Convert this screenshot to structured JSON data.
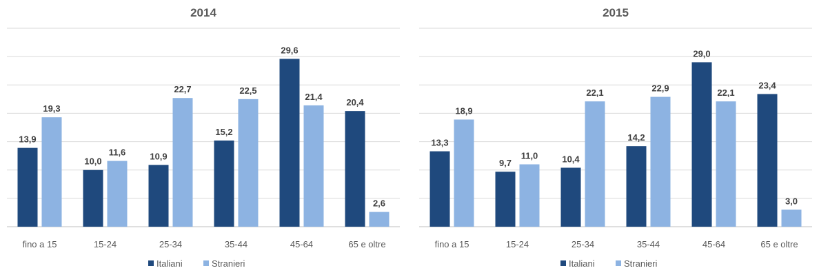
{
  "chart_data": [
    {
      "type": "bar",
      "title": "2014",
      "categories": [
        "fino a 15",
        "15-24",
        "25-34",
        "35-44",
        "45-64",
        "65 e oltre"
      ],
      "series": [
        {
          "name": "Italiani",
          "values": [
            13.9,
            10.0,
            10.9,
            15.2,
            29.6,
            20.4
          ]
        },
        {
          "name": "Stranieri",
          "values": [
            19.3,
            11.6,
            22.7,
            22.5,
            21.4,
            2.6
          ]
        }
      ],
      "data_labels": [
        [
          "13,9",
          "10,0",
          "10,9",
          "15,2",
          "29,6",
          "20,4"
        ],
        [
          "19,3",
          "11,6",
          "22,7",
          "22,5",
          "21,4",
          "2,6"
        ]
      ],
      "ylim": [
        0,
        35
      ],
      "grid": true,
      "legend": "bottom",
      "colors": [
        "#1f497d",
        "#8db3e2"
      ]
    },
    {
      "type": "bar",
      "title": "2015",
      "categories": [
        "fino a 15",
        "15-24",
        "25-34",
        "35-44",
        "45-64",
        "65 e oltre"
      ],
      "series": [
        {
          "name": "Italiani",
          "values": [
            13.3,
            9.7,
            10.4,
            14.2,
            29.0,
            23.4
          ]
        },
        {
          "name": "Stranieri",
          "values": [
            18.9,
            11.0,
            22.1,
            22.9,
            22.1,
            3.0
          ]
        }
      ],
      "data_labels": [
        [
          "13,3",
          "9,7",
          "10,4",
          "14,2",
          "29,0",
          "23,4"
        ],
        [
          "18,9",
          "11,0",
          "22,1",
          "22,9",
          "22,1",
          "3,0"
        ]
      ],
      "ylim": [
        0,
        35
      ],
      "grid": true,
      "legend": "bottom",
      "colors": [
        "#1f497d",
        "#8db3e2"
      ]
    }
  ]
}
